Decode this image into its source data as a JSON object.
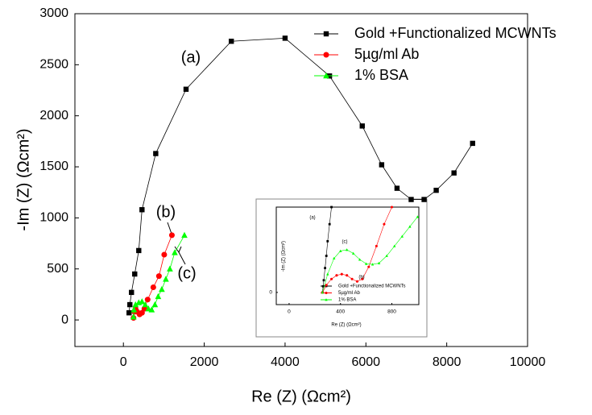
{
  "chart_data": [
    {
      "type": "line",
      "xlabel": "Re (Z) (Ωcm²)",
      "ylabel": "-Im (Z) (Ωcm²)",
      "xlim": [
        -1200,
        10000
      ],
      "ylim": [
        -260,
        3000
      ],
      "xticks": [
        0,
        2000,
        4000,
        6000,
        8000,
        10000
      ],
      "yticks": [
        0,
        500,
        1000,
        1500,
        2000,
        2500,
        3000
      ],
      "legend": "upper right",
      "annotations": [
        "(a)",
        "(b)",
        "(c)"
      ],
      "series": [
        {
          "name": "Gold +Functionalized MCWNTs",
          "color": "#000000",
          "marker": "square",
          "x": [
            140,
            160,
            200,
            280,
            380,
            460,
            800,
            1550,
            2670,
            4000,
            5100,
            5910,
            6390,
            6770,
            7120,
            7440,
            7740,
            8180,
            8640
          ],
          "values": [
            70,
            150,
            270,
            450,
            680,
            1080,
            1630,
            2260,
            2730,
            2760,
            2390,
            1900,
            1520,
            1290,
            1180,
            1180,
            1270,
            1440,
            1730
          ]
        },
        {
          "name": "5µg/ml Ab",
          "color": "#ff0000",
          "marker": "circle",
          "x": [
            250,
            270,
            300,
            340,
            400,
            460,
            520,
            600,
            740,
            880,
            1010,
            1200
          ],
          "values": [
            20,
            80,
            110,
            80,
            55,
            70,
            110,
            200,
            320,
            430,
            640,
            830
          ]
        },
        {
          "name": "1% BSA",
          "color": "#00ff00",
          "marker": "triangle",
          "x": [
            250,
            260,
            300,
            380,
            460,
            540,
            620,
            700,
            780,
            860,
            950,
            1050,
            1150,
            1270,
            1510
          ],
          "values": [
            30,
            100,
            150,
            170,
            180,
            150,
            110,
            100,
            150,
            230,
            300,
            400,
            500,
            660,
            830
          ]
        }
      ]
    },
    {
      "type": "line",
      "xlabel": "Re (Z) (Ωcm²)",
      "ylabel": "-Im (Z) (Ωcm²)",
      "xlim": [
        -100,
        1010
      ],
      "ylim": [
        -100,
        700
      ],
      "xticks": [
        0,
        400,
        800
      ],
      "yticks": [
        0
      ],
      "legend": "lower center",
      "annotations": [
        "(a)",
        "(c)",
        "(b)"
      ],
      "series": [
        {
          "name": "Gold +Functionalized MCWNTs",
          "color": "#000000",
          "marker": "square",
          "x": [
            260,
            265,
            270,
            280,
            290,
            300,
            315,
            330
          ],
          "values": [
            0,
            50,
            100,
            200,
            300,
            420,
            560,
            700
          ]
        },
        {
          "name": "5µg/ml Ab",
          "color": "#ff0000",
          "marker": "circle",
          "x": [
            260,
            290,
            330,
            370,
            410,
            450,
            490,
            530,
            570,
            620,
            680,
            740,
            800
          ],
          "values": [
            0,
            60,
            110,
            140,
            150,
            140,
            110,
            90,
            110,
            210,
            380,
            560,
            700
          ]
        },
        {
          "name": "1% BSA",
          "color": "#00ff00",
          "marker": "triangle",
          "x": [
            260,
            300,
            350,
            400,
            450,
            500,
            550,
            600,
            650,
            700,
            760,
            820,
            880,
            940,
            1000
          ],
          "values": [
            0,
            150,
            280,
            340,
            350,
            320,
            270,
            235,
            230,
            240,
            300,
            380,
            460,
            540,
            620
          ]
        }
      ]
    }
  ]
}
